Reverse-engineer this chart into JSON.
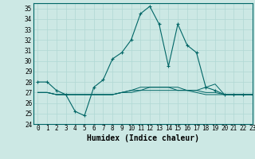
{
  "xlabel": "Humidex (Indice chaleur)",
  "xlim": [
    -0.5,
    23
  ],
  "ylim": [
    24,
    35.5
  ],
  "yticks": [
    24,
    25,
    26,
    27,
    28,
    29,
    30,
    31,
    32,
    33,
    34,
    35
  ],
  "xticks": [
    0,
    1,
    2,
    3,
    4,
    5,
    6,
    7,
    8,
    9,
    10,
    11,
    12,
    13,
    14,
    15,
    16,
    17,
    18,
    19,
    20,
    21,
    22,
    23
  ],
  "bg_color": "#cce8e4",
  "grid_color": "#b0d8d4",
  "line_color": "#006666",
  "series1": [
    28.0,
    28.0,
    27.2,
    26.8,
    25.2,
    24.8,
    27.5,
    28.2,
    30.2,
    30.8,
    32.0,
    34.5,
    35.2,
    33.5,
    29.5,
    33.5,
    31.5,
    30.8,
    27.5,
    27.2,
    26.8,
    26.8,
    26.8,
    26.8
  ],
  "series2": [
    27.0,
    27.0,
    26.8,
    26.8,
    26.8,
    26.8,
    26.8,
    26.8,
    26.8,
    27.0,
    27.0,
    27.2,
    27.2,
    27.2,
    27.2,
    27.2,
    27.2,
    27.2,
    27.0,
    27.0,
    26.8,
    26.8,
    26.8,
    26.8
  ],
  "series3": [
    27.0,
    27.0,
    26.8,
    26.8,
    26.8,
    26.8,
    26.8,
    26.8,
    26.8,
    27.0,
    27.2,
    27.2,
    27.5,
    27.5,
    27.5,
    27.5,
    27.2,
    27.2,
    27.5,
    27.8,
    26.8,
    26.8,
    26.8,
    26.8
  ],
  "series4": [
    27.0,
    27.0,
    26.8,
    26.8,
    26.8,
    26.8,
    26.8,
    26.8,
    26.8,
    27.0,
    27.2,
    27.5,
    27.5,
    27.5,
    27.5,
    27.2,
    27.2,
    27.0,
    26.8,
    26.8,
    26.8,
    26.8,
    26.8,
    26.8
  ]
}
